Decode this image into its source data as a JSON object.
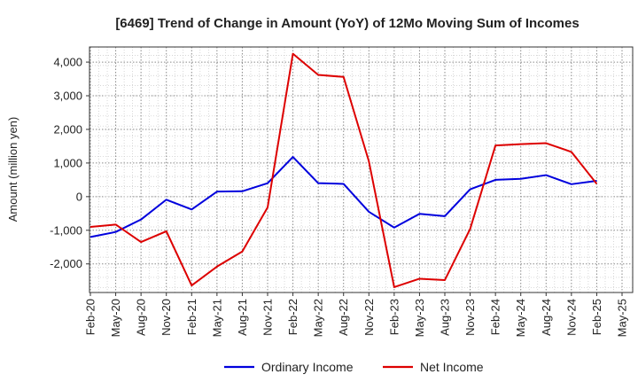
{
  "chart_data": {
    "type": "line",
    "title": "[6469]  Trend of Change in Amount (YoY) of 12Mo Moving Sum of Incomes",
    "ylabel": "Amount (million yen)",
    "xlabel": "",
    "ylim": [
      -2850,
      4450
    ],
    "yticks": [
      -2000,
      -1000,
      0,
      1000,
      2000,
      3000,
      4000
    ],
    "ytick_labels": [
      "-2,000",
      "-1,000",
      "0",
      "1,000",
      "2,000",
      "3,000",
      "4,000"
    ],
    "x": [
      "Feb-20",
      "May-20",
      "Aug-20",
      "Nov-20",
      "Feb-21",
      "May-21",
      "Aug-21",
      "Nov-21",
      "Feb-22",
      "May-22",
      "Aug-22",
      "Nov-22",
      "Feb-23",
      "May-23",
      "Aug-23",
      "Nov-23",
      "Feb-24",
      "May-24",
      "Aug-24",
      "Nov-24",
      "Feb-25",
      "May-25"
    ],
    "grid": true,
    "legend_position": "bottom-center",
    "series": [
      {
        "name": "Ordinary Income",
        "color": "#0000dd",
        "values": [
          -1200,
          -1050,
          -680,
          -90,
          -380,
          150,
          160,
          400,
          1180,
          400,
          380,
          -450,
          -920,
          -510,
          -580,
          220,
          500,
          530,
          640,
          370,
          470,
          null
        ]
      },
      {
        "name": "Net Income",
        "color": "#dd0000",
        "values": [
          -900,
          -830,
          -1350,
          -1030,
          -2640,
          -2080,
          -1630,
          -320,
          4250,
          3620,
          3560,
          1050,
          -2690,
          -2440,
          -2480,
          -960,
          1520,
          1560,
          1590,
          1330,
          380,
          null
        ]
      }
    ]
  }
}
